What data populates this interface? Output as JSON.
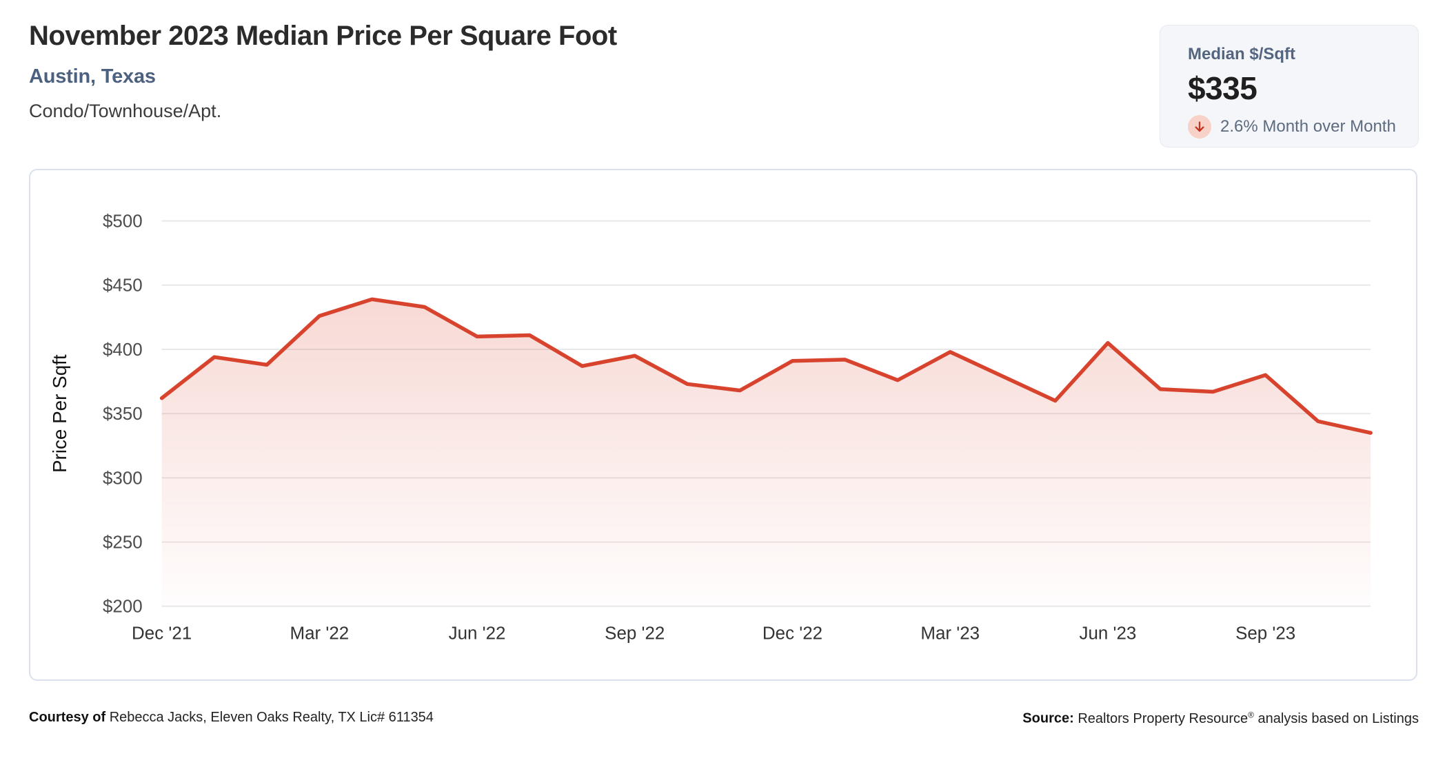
{
  "header": {
    "title": "November 2023 Median Price Per Square Foot",
    "location": "Austin, Texas",
    "property_type": "Condo/Townhouse/Apt."
  },
  "stat_card": {
    "label": "Median $/Sqft",
    "value": "$335",
    "trend": "down",
    "change_text": "2.6% Month over Month"
  },
  "chart_data": {
    "type": "area",
    "title": "",
    "xlabel": "",
    "ylabel": "Price Per Sqft",
    "ylim": [
      200,
      500
    ],
    "ytick_step": 50,
    "ytick_labels": [
      "$500",
      "$450",
      "$400",
      "$350",
      "$300",
      "$250",
      "$200"
    ],
    "grid": true,
    "legend": false,
    "x": [
      "Dec '21",
      "Jan '22",
      "Feb '22",
      "Mar '22",
      "Apr '22",
      "May '22",
      "Jun '22",
      "Jul '22",
      "Aug '22",
      "Sep '22",
      "Oct '22",
      "Nov '22",
      "Dec '22",
      "Jan '23",
      "Feb '23",
      "Mar '23",
      "Apr '23",
      "May '23",
      "Jun '23",
      "Jul '23",
      "Aug '23",
      "Sep '23",
      "Oct '23",
      "Nov '23"
    ],
    "series": [
      {
        "name": "Median Price Per Sqft",
        "values": [
          362,
          394,
          388,
          426,
          439,
          433,
          410,
          411,
          387,
          395,
          373,
          368,
          391,
          392,
          376,
          398,
          379,
          360,
          405,
          369,
          367,
          380,
          344,
          335
        ]
      }
    ],
    "xtick_every": 3,
    "xtick_labels": [
      "Dec '21",
      "Mar '22",
      "Jun '22",
      "Sep '22",
      "Dec '22",
      "Mar '23",
      "Jun '23",
      "Sep '23"
    ],
    "line_color": "#d8432d",
    "area_color": "#d8432d",
    "gridline_color": "#e8e8e8",
    "ytick_color": "#4c4c4c",
    "xtick_color": "#333333",
    "axis_title_color": "#141414"
  },
  "footer": {
    "courtesy_label": "Courtesy of",
    "courtesy_text": "Rebecca Jacks, Eleven Oaks Realty, TX Lic# 611354",
    "source_label": "Source:",
    "source_name": "Realtors Property Resource",
    "source_reg": "®",
    "source_suffix": "analysis based on Listings"
  },
  "colors": {
    "accent_red": "#d8432d",
    "arrow_red": "#c23321",
    "arrow_circle_bg": "#f8d2c9",
    "slate_blue": "#4c617f",
    "stat_card_bg": "#f5f6f9",
    "card_border": "#dbe1ec"
  }
}
